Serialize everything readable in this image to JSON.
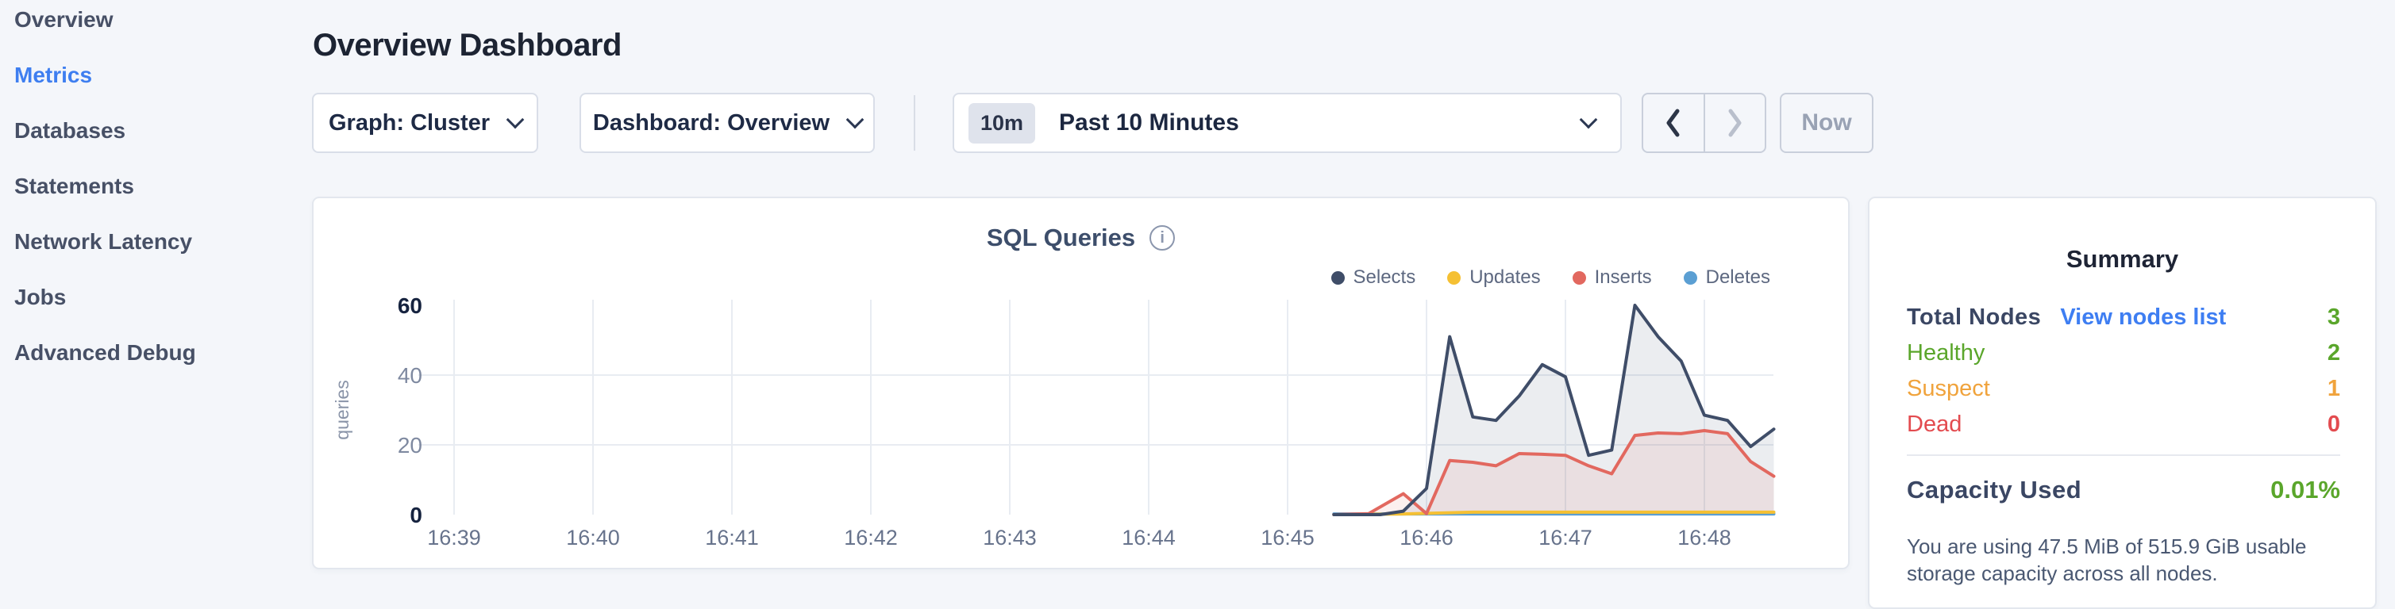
{
  "sidebar": {
    "items": [
      {
        "label": "Overview",
        "active": false
      },
      {
        "label": "Metrics",
        "active": true
      },
      {
        "label": "Databases",
        "active": false
      },
      {
        "label": "Statements",
        "active": false
      },
      {
        "label": "Network Latency",
        "active": false
      },
      {
        "label": "Jobs",
        "active": false
      },
      {
        "label": "Advanced Debug",
        "active": false
      }
    ]
  },
  "header": {
    "title": "Overview Dashboard"
  },
  "toolbar": {
    "graph_dropdown": "Graph: Cluster",
    "dashboard_dropdown": "Dashboard: Overview",
    "time_badge": "10m",
    "time_label": "Past 10 Minutes",
    "now_button": "Now"
  },
  "chart_data": {
    "type": "line",
    "title": "SQL Queries",
    "ylabel": "queries",
    "xlabel": "",
    "ylim": [
      0,
      60
    ],
    "yticks": [
      0,
      20,
      40,
      60
    ],
    "xticks": [
      "16:39",
      "16:40",
      "16:41",
      "16:42",
      "16:43",
      "16:44",
      "16:45",
      "16:46",
      "16:47",
      "16:48"
    ],
    "x_unit": "seconds after 16:39:00",
    "grid": true,
    "legend_position": "top-right",
    "series": [
      {
        "name": "Selects",
        "color": "#3f4d68",
        "fill": "rgba(63,77,104,0.10)",
        "points": [
          [
            380,
            0
          ],
          [
            400,
            0
          ],
          [
            410,
            1
          ],
          [
            420,
            7.5
          ],
          [
            430,
            51
          ],
          [
            440,
            28
          ],
          [
            450,
            27
          ],
          [
            460,
            34
          ],
          [
            470,
            43
          ],
          [
            480,
            39.5
          ],
          [
            490,
            17
          ],
          [
            500,
            18.5
          ],
          [
            510,
            60
          ],
          [
            520,
            51
          ],
          [
            530,
            44
          ],
          [
            540,
            28.5
          ],
          [
            550,
            27
          ],
          [
            560,
            19.5
          ],
          [
            570,
            24.5
          ]
        ]
      },
      {
        "name": "Updates",
        "color": "#f5c033",
        "fill": "none",
        "points": [
          [
            380,
            0
          ],
          [
            410,
            0.2
          ],
          [
            440,
            0.7
          ],
          [
            570,
            0.7
          ]
        ]
      },
      {
        "name": "Inserts",
        "color": "#e2685f",
        "fill": "rgba(226,104,95,0.10)",
        "points": [
          [
            380,
            0
          ],
          [
            395,
            0.3
          ],
          [
            410,
            6
          ],
          [
            420,
            0.3
          ],
          [
            430,
            15.5
          ],
          [
            440,
            15
          ],
          [
            450,
            14
          ],
          [
            460,
            17.5
          ],
          [
            470,
            17.3
          ],
          [
            480,
            17
          ],
          [
            490,
            14
          ],
          [
            500,
            11.7
          ],
          [
            510,
            22.7
          ],
          [
            520,
            23.4
          ],
          [
            530,
            23.2
          ],
          [
            540,
            24.1
          ],
          [
            550,
            23.2
          ],
          [
            560,
            15.2
          ],
          [
            570,
            11
          ]
        ]
      },
      {
        "name": "Deletes",
        "color": "#5b9fd3",
        "fill": "none",
        "points": [
          [
            380,
            0.2
          ],
          [
            570,
            0.2
          ]
        ]
      }
    ]
  },
  "summary": {
    "title": "Summary",
    "total_nodes_label": "Total Nodes",
    "view_nodes_link": "View nodes list",
    "total_nodes_value": "3",
    "total_nodes_color": "#5aa62b",
    "rows": [
      {
        "label": "Healthy",
        "value": "2",
        "color": "#5aa62b"
      },
      {
        "label": "Suspect",
        "value": "1",
        "color": "#f0a33c"
      },
      {
        "label": "Dead",
        "value": "0",
        "color": "#e34b4f"
      }
    ],
    "capacity_label": "Capacity Used",
    "capacity_value": "0.01%",
    "capacity_description": "You are using 47.5 MiB of 515.9 GiB usable storage capacity across all nodes."
  }
}
